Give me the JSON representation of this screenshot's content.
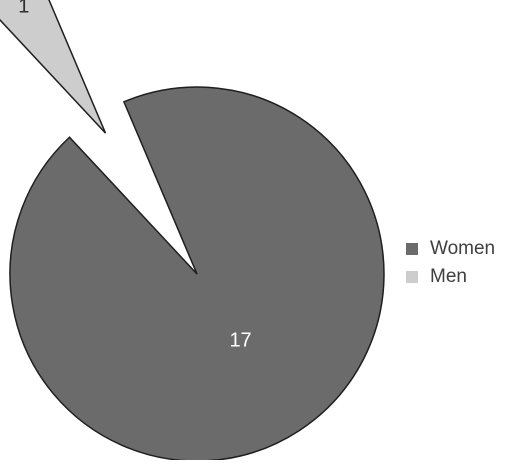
{
  "chart_data": {
    "type": "pie",
    "title": "",
    "categories": [
      "Women",
      "Men"
    ],
    "values": [
      17,
      1
    ],
    "data_labels": [
      "17",
      "1"
    ],
    "exploded": [
      "Men"
    ],
    "legend": "right",
    "colors": {
      "Women": "#6b6b6b",
      "Men": "#cdcdcd",
      "outline": "#1f1f1f",
      "label_dark": "#2f2f2f",
      "label_light": "#ffffff"
    }
  }
}
